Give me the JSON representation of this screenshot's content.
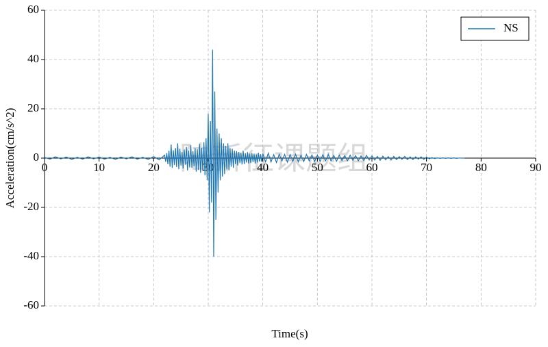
{
  "chart_data": {
    "type": "line",
    "x_label": "Time(s)",
    "y_label": "Acceleration(cm/s^2)",
    "watermark": "陆新征课题组",
    "xlim": [
      0,
      90
    ],
    "xticks": [
      0,
      10,
      20,
      30,
      40,
      50,
      60,
      70,
      80,
      90
    ],
    "ylim": [
      -60,
      60
    ],
    "yticks": [
      -60,
      -40,
      -20,
      0,
      20,
      40,
      60
    ],
    "grid": true,
    "legend": "upper right",
    "x": [
      0,
      1,
      2,
      3,
      4,
      5,
      6,
      7,
      8,
      9,
      10,
      11,
      12,
      13,
      14,
      15,
      16,
      17,
      18,
      19,
      20,
      21,
      22.0,
      22.2,
      22.4,
      22.6,
      22.8,
      23.0,
      23.2,
      23.4,
      23.6,
      23.8,
      24.0,
      24.2,
      24.4,
      24.6,
      24.8,
      25.0,
      25.2,
      25.4,
      25.6,
      25.8,
      26.0,
      26.2,
      26.4,
      26.6,
      26.8,
      27.0,
      27.2,
      27.4,
      27.6,
      27.8,
      28.0,
      28.2,
      28.4,
      28.6,
      28.8,
      29.0,
      29.2,
      29.4,
      29.6,
      29.8,
      30.0,
      30.2,
      30.4,
      30.6,
      30.8,
      31.0,
      31.2,
      31.4,
      31.6,
      31.8,
      32.0,
      32.2,
      32.4,
      32.6,
      32.8,
      33.0,
      33.2,
      33.4,
      33.6,
      33.8,
      34.0,
      34.2,
      34.4,
      34.6,
      34.8,
      35.0,
      35.2,
      35.4,
      35.6,
      35.8,
      36.0,
      36.2,
      36.4,
      36.6,
      36.8,
      37.0,
      37.2,
      37.4,
      37.6,
      37.8,
      38.0,
      38.2,
      38.4,
      38.6,
      38.8,
      39.0,
      39.2,
      39.4,
      39.6,
      39.8,
      40.0,
      40.5,
      41.0,
      41.5,
      42.0,
      42.5,
      43.0,
      43.5,
      44.0,
      44.5,
      45.0,
      45.5,
      46.0,
      46.5,
      47.0,
      47.5,
      48.0,
      48.5,
      49.0,
      49.5,
      50.0,
      50.5,
      51.0,
      51.5,
      52.0,
      52.5,
      53.0,
      53.5,
      54.0,
      54.5,
      55.0,
      55.5,
      56.0,
      56.5,
      57.0,
      57.5,
      58.0,
      58.5,
      59.0,
      59.5,
      60.0,
      60.5,
      61.0,
      61.5,
      62.0,
      62.5,
      63.0,
      63.5,
      64.0,
      64.5,
      65.0,
      65.5,
      66.0,
      66.5,
      67.0,
      67.5,
      68.0,
      68.5,
      69.0,
      69.5,
      70.0,
      70.5,
      71.0,
      71.5,
      72.0,
      72.5,
      73.0,
      73.5,
      74.0,
      74.5,
      75.0,
      75.5,
      76.0,
      76.5,
      77.0
    ],
    "series": [
      {
        "name": "NS",
        "color": "#1f77b4",
        "values": [
          0.3,
          -0.4,
          0.5,
          -0.3,
          0.4,
          -0.5,
          0.3,
          -0.4,
          0.5,
          -0.3,
          0.4,
          -0.4,
          0.3,
          -0.5,
          0.4,
          -0.3,
          0.5,
          -0.4,
          0.3,
          -0.5,
          0.6,
          -0.7,
          1.2,
          -1.5,
          2.0,
          -2.5,
          3.0,
          -3.5,
          5.5,
          -4.0,
          3.2,
          -2.8,
          4.1,
          -3.6,
          6.0,
          -4.5,
          3.8,
          -3.0,
          2.5,
          -4.2,
          3.5,
          -2.7,
          4.5,
          -5.0,
          3.0,
          -3.8,
          5.2,
          -4.0,
          2.8,
          -3.3,
          4.0,
          -5.5,
          3.6,
          -4.8,
          5.8,
          -6.0,
          4.2,
          -5.2,
          6.5,
          -7.0,
          8.0,
          -9.0,
          18,
          -22,
          15,
          -18,
          44,
          -40,
          27,
          -25,
          12,
          -14,
          10,
          -9,
          8,
          -7.5,
          6,
          -6.5,
          5,
          -4.5,
          6,
          -5,
          4,
          -3.5,
          3.8,
          -4,
          3,
          -2.5,
          2.8,
          -3,
          2.5,
          -2,
          2.2,
          -2.6,
          3,
          -2.4,
          2,
          -1.8,
          2.4,
          -2.2,
          1.8,
          -2,
          2,
          -1.6,
          1.8,
          -2.2,
          1.5,
          -1.8,
          2.1,
          -1.4,
          1.6,
          -1.5,
          1.8,
          -1.5,
          2.0,
          -1.6,
          1.4,
          -1.8,
          1.6,
          -1.2,
          1.5,
          -1.7,
          1.4,
          -1.3,
          1.6,
          -1.5,
          1.2,
          -1.4,
          1.5,
          -1.1,
          1.3,
          -1.4,
          1.2,
          -1.3,
          1.4,
          -1.1,
          1.5,
          -1.2,
          1.1,
          -1.3,
          1.2,
          -1.0,
          1.0,
          -1.1,
          1.2,
          -0.9,
          1.0,
          -1.1,
          0.9,
          -1.0,
          1.1,
          -0.8,
          0.9,
          -0.8,
          0.7,
          -0.9,
          0.8,
          -0.7,
          0.6,
          -0.8,
          0.7,
          -0.6,
          0.6,
          -0.5,
          0.7,
          -0.6,
          0.5,
          -0.6,
          0.5,
          -0.4,
          0.5,
          -0.5,
          0.4,
          -0.3,
          0.2,
          -0.2,
          0.1,
          -0.1,
          0.1,
          -0.1,
          0.1,
          -0.1,
          0.1,
          -0.1,
          0.05,
          0,
          0
        ]
      }
    ]
  }
}
